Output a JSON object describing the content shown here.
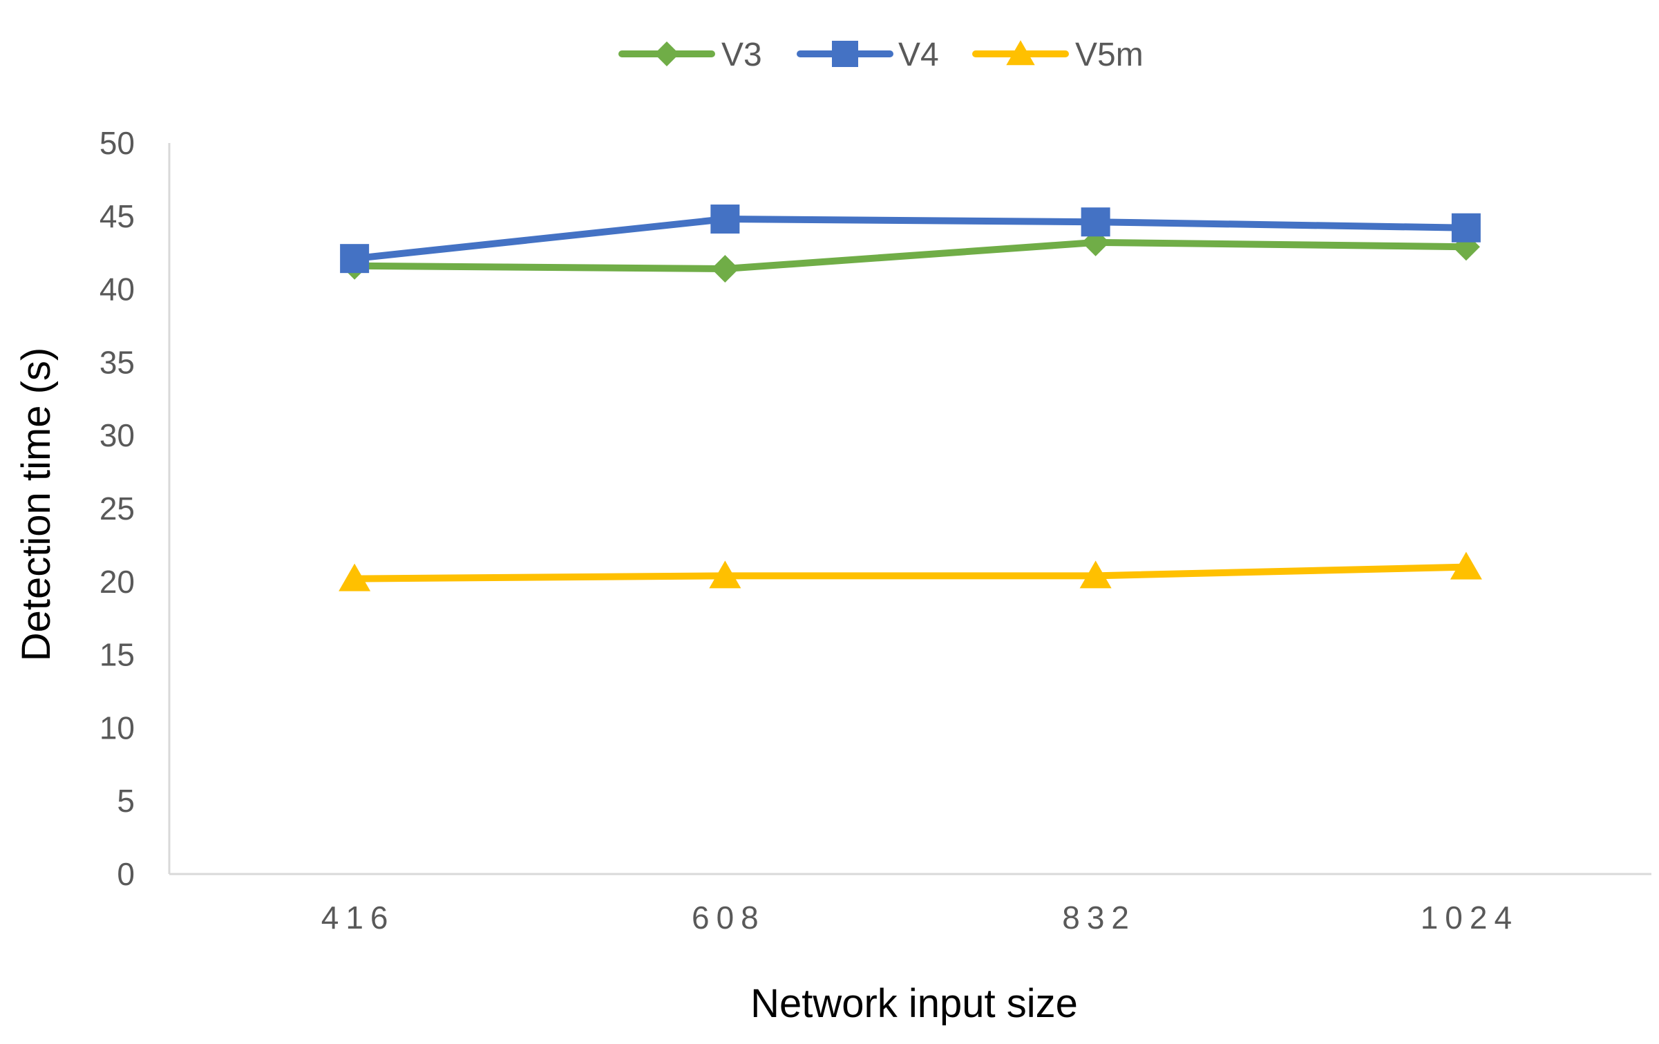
{
  "chart_data": {
    "type": "line",
    "title": "",
    "xlabel": "Network input size",
    "ylabel": "Detection time (s)",
    "categories": [
      "416",
      "608",
      "832",
      "1024"
    ],
    "ylim": [
      0,
      50
    ],
    "yticks": [
      "0",
      "5",
      "10",
      "15",
      "20",
      "25",
      "30",
      "35",
      "40",
      "45",
      "50"
    ],
    "grid": false,
    "legend_position": "top",
    "series": [
      {
        "name": "V3",
        "values": [
          41.6,
          41.4,
          43.2,
          42.9
        ],
        "color": "#70AD47",
        "marker": "diamond"
      },
      {
        "name": "V4",
        "values": [
          42.1,
          44.8,
          44.6,
          44.2
        ],
        "color": "#4472C4",
        "marker": "square"
      },
      {
        "name": "V5m",
        "values": [
          20.2,
          20.4,
          20.4,
          21.0
        ],
        "color": "#FFC000",
        "marker": "triangle"
      }
    ]
  }
}
